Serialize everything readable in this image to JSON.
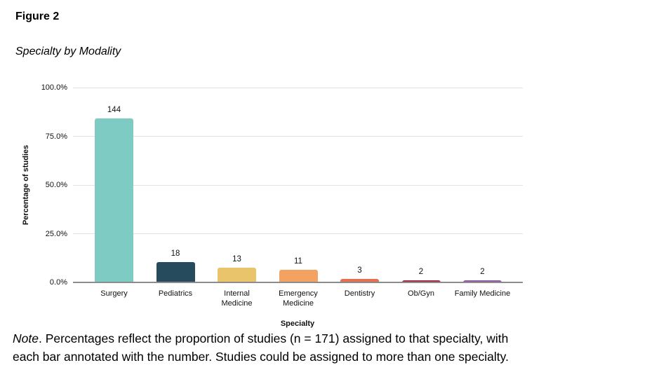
{
  "figure": {
    "label": "Figure 2",
    "title": "Specialty by Modality"
  },
  "chart_data": {
    "type": "bar",
    "title": "Specialty by Modality",
    "xlabel": "Specialty",
    "ylabel": "Percentage of studies",
    "n_total": 171,
    "categories": [
      "Surgery",
      "Pediatrics",
      "Internal Medicine",
      "Emergency Medicine",
      "Dentistry",
      "Ob/Gyn",
      "Family Medicine"
    ],
    "counts": [
      144,
      18,
      13,
      11,
      3,
      2,
      2
    ],
    "percentages": [
      84.2,
      10.5,
      7.6,
      6.4,
      1.8,
      1.2,
      1.2
    ],
    "bar_colors": [
      "#7ecbc3",
      "#254b5c",
      "#e9c46a",
      "#f4a261",
      "#e76f51",
      "#a12c44",
      "#9059a4"
    ],
    "ylim": [
      0,
      100
    ],
    "yticks": [
      {
        "value": 0,
        "label": "0.0%"
      },
      {
        "value": 25,
        "label": "25.0%"
      },
      {
        "value": 50,
        "label": "50.0%"
      },
      {
        "value": 75,
        "label": "75.0%"
      },
      {
        "value": 100,
        "label": "100.0%"
      }
    ],
    "grid": "horizontal",
    "legend": "none",
    "annotations": "count above each bar"
  },
  "colors": {
    "gridline": "#e2e2e2",
    "baseline": "#8c8c8c",
    "background": "#ffffff"
  },
  "note": {
    "italic_lead": "Note",
    "line1_rest": ". Percentages reflect the proportion of studies (n = 171) assigned to that specialty, with",
    "line2": "each bar annotated with the number. Studies could be assigned to more than one specialty."
  }
}
